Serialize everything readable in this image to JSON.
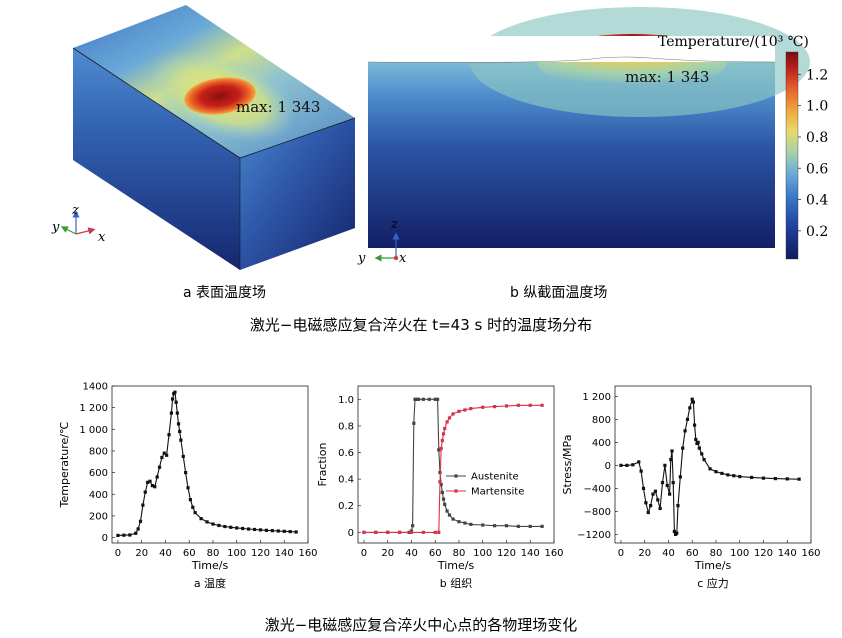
{
  "top_figure": {
    "colorbar_title": "Temperature/(10³ ℃)",
    "colorbar_ticks": [
      "1.2",
      "1.0",
      "0.8",
      "0.6",
      "0.4",
      "0.2"
    ],
    "colorbar_tick_values": [
      1.2,
      1.0,
      0.8,
      0.6,
      0.4,
      0.2
    ],
    "colorbar_range": [
      0.02,
      1.343
    ],
    "panel_a": {
      "max_label": "max: 1 343",
      "caption": "a  表面温度场",
      "axes": {
        "z": "z",
        "y": "y",
        "x": "x"
      }
    },
    "panel_b": {
      "max_label": "max: 1 343",
      "caption": "b  纵截面温度场",
      "axes": {
        "z": "z",
        "y": "y",
        "x": "x"
      }
    },
    "figure_caption": "激光−电磁感应复合淬火在 t=43  s 时的温度场分布"
  },
  "bottom_figure": {
    "figure_caption": "激光−电磁感应复合淬火中心点的各物理场变化"
  },
  "chart_data": [
    {
      "type": "line",
      "caption": "a  温度",
      "xlabel": "Time/s",
      "ylabel": "Temperature/℃",
      "xlim": [
        -5,
        160
      ],
      "ylim": [
        -50,
        1400
      ],
      "xticks": [
        "0",
        "20",
        "40",
        "60",
        "80",
        "100",
        "120",
        "140",
        "160"
      ],
      "xtick_values": [
        0,
        20,
        40,
        60,
        80,
        100,
        120,
        140,
        160
      ],
      "yticks": [
        "0",
        "200",
        "400",
        "600",
        "800",
        "1 000",
        "1 200",
        "1400"
      ],
      "ytick_values": [
        0,
        200,
        400,
        600,
        800,
        1000,
        1200,
        1400
      ],
      "series": [
        {
          "color": "#111111",
          "x": [
            0,
            5,
            10,
            15,
            17,
            19,
            21,
            23,
            25,
            27,
            29,
            31,
            33,
            35,
            37,
            39,
            41,
            43,
            45,
            46,
            47,
            48,
            49,
            50,
            51,
            52,
            53,
            55,
            57,
            59,
            61,
            63,
            65,
            70,
            75,
            80,
            85,
            90,
            95,
            100,
            105,
            110,
            115,
            120,
            125,
            130,
            135,
            140,
            145,
            150
          ],
          "y": [
            20,
            22,
            24,
            40,
            80,
            150,
            300,
            420,
            510,
            520,
            480,
            470,
            560,
            650,
            740,
            780,
            760,
            950,
            1150,
            1280,
            1330,
            1343,
            1250,
            1150,
            1050,
            980,
            900,
            750,
            600,
            460,
            350,
            280,
            230,
            175,
            145,
            125,
            112,
            102,
            95,
            89,
            84,
            79,
            75,
            71,
            67,
            64,
            61,
            58,
            55,
            52
          ]
        }
      ]
    },
    {
      "type": "line",
      "caption": "b  组织",
      "xlabel": "Time/s",
      "ylabel": "Fraction",
      "xlim": [
        -5,
        160
      ],
      "ylim": [
        -0.08,
        1.1
      ],
      "xticks": [
        "0",
        "20",
        "40",
        "60",
        "80",
        "100",
        "120",
        "140",
        "160"
      ],
      "xtick_values": [
        0,
        20,
        40,
        60,
        80,
        100,
        120,
        140,
        160
      ],
      "yticks": [
        "0",
        "0.2",
        "0.4",
        "0.6",
        "0.8",
        "1.0"
      ],
      "ytick_values": [
        0,
        0.2,
        0.4,
        0.6,
        0.8,
        1.0
      ],
      "legend": [
        "Austenite",
        "Martensite"
      ],
      "legend_position": "center-right",
      "series": [
        {
          "name": "Austenite",
          "color": "#444444",
          "x": [
            0,
            10,
            20,
            30,
            38,
            40,
            41,
            42,
            43,
            44,
            46,
            50,
            55,
            60,
            62,
            63,
            64,
            65,
            66,
            67,
            68,
            70,
            72,
            75,
            80,
            85,
            90,
            100,
            110,
            120,
            130,
            140,
            150
          ],
          "y": [
            0,
            0,
            0,
            0,
            0,
            0.01,
            0.05,
            0.82,
            1.0,
            1.0,
            1.0,
            1.0,
            1.0,
            1.0,
            1.0,
            0.62,
            0.45,
            0.36,
            0.3,
            0.25,
            0.21,
            0.16,
            0.13,
            0.1,
            0.08,
            0.07,
            0.06,
            0.055,
            0.05,
            0.05,
            0.045,
            0.045,
            0.045
          ]
        },
        {
          "name": "Martensite",
          "color": "#d4334a",
          "x": [
            0,
            10,
            20,
            30,
            40,
            50,
            60,
            63,
            64,
            65,
            66,
            67,
            68,
            70,
            72,
            75,
            80,
            85,
            90,
            100,
            110,
            120,
            130,
            140,
            150
          ],
          "y": [
            0,
            0,
            0,
            0,
            0,
            0,
            0,
            0,
            0.38,
            0.63,
            0.69,
            0.74,
            0.78,
            0.83,
            0.86,
            0.89,
            0.91,
            0.92,
            0.93,
            0.94,
            0.945,
            0.95,
            0.955,
            0.955,
            0.955
          ]
        }
      ]
    },
    {
      "type": "line",
      "caption": "c  应力",
      "xlabel": "Time/s",
      "ylabel": "Stress/MPa",
      "xlim": [
        -5,
        160
      ],
      "ylim": [
        -1350,
        1380
      ],
      "xticks": [
        "0",
        "20",
        "40",
        "60",
        "80",
        "100",
        "120",
        "140",
        "160"
      ],
      "xtick_values": [
        0,
        20,
        40,
        60,
        80,
        100,
        120,
        140,
        160
      ],
      "yticks": [
        "1 200",
        "800",
        "400",
        "0",
        "−400",
        "−800",
        "−1200"
      ],
      "ytick_values": [
        1200,
        800,
        400,
        0,
        -400,
        -800,
        -1200
      ],
      "series": [
        {
          "color": "#111111",
          "x": [
            0,
            5,
            10,
            15,
            17,
            19,
            21,
            23,
            25,
            27,
            29,
            31,
            33,
            35,
            37,
            39,
            41,
            42,
            43,
            44,
            45,
            46,
            47,
            48,
            50,
            52,
            54,
            56,
            58,
            60,
            61,
            62,
            63,
            64,
            65,
            66,
            68,
            70,
            75,
            80,
            85,
            90,
            95,
            100,
            110,
            120,
            130,
            140,
            150
          ],
          "y": [
            0,
            0,
            10,
            60,
            -100,
            -400,
            -650,
            -820,
            -700,
            -500,
            -450,
            -600,
            -750,
            -300,
            0,
            -350,
            -500,
            100,
            250,
            -300,
            -1150,
            -1200,
            -1180,
            -700,
            -200,
            300,
            600,
            800,
            1000,
            1150,
            1100,
            700,
            450,
            380,
            400,
            300,
            200,
            100,
            -60,
            -110,
            -140,
            -165,
            -180,
            -195,
            -210,
            -222,
            -230,
            -235,
            -240
          ]
        }
      ]
    }
  ]
}
